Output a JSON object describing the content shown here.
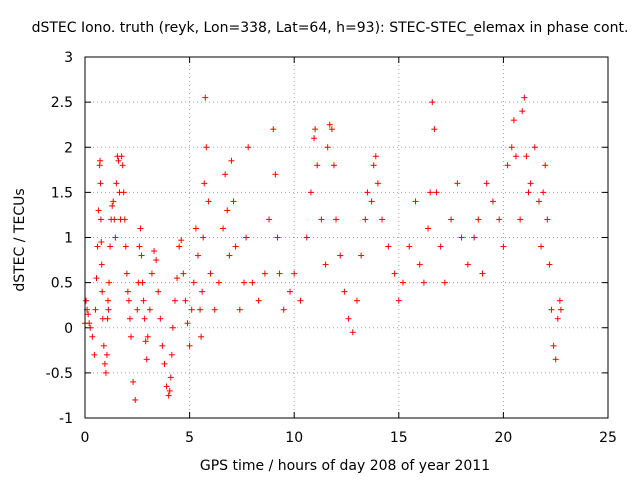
{
  "chart_data": {
    "type": "scatter",
    "title": "dSTEC Iono. truth (reyk, Lon=338, Lat=64, h=93): STEC-STEC_elemax in phase cont.",
    "xlabel": "GPS time / hours of day 208 of year 2011",
    "ylabel": "dSTEC  / TECUs",
    "xlim": [
      0,
      25
    ],
    "ylim": [
      -1,
      3
    ],
    "grid": true,
    "marker": "+",
    "color": "#ff0000",
    "xticks": [
      "0",
      "5",
      "10",
      "15",
      "20",
      "25"
    ],
    "yticks": [
      "-1",
      "-0.5",
      "0",
      "0.5",
      "1",
      "1.5",
      "2",
      "2.5",
      "3"
    ],
    "series": [
      {
        "x": [
          0.0,
          0.05,
          0.1,
          0.15,
          0.2,
          0.25,
          0.35,
          0.45,
          0.5,
          0.55,
          0.6,
          0.65,
          0.7,
          0.72,
          0.74,
          0.76,
          0.78,
          0.8,
          0.82,
          0.85,
          0.9,
          0.95,
          1.0,
          1.05,
          1.08,
          1.1,
          1.12,
          1.15,
          1.2,
          1.25,
          1.3,
          1.35,
          1.4,
          1.45,
          1.5,
          1.55,
          1.6,
          1.65,
          1.7,
          1.75,
          1.8,
          1.85,
          1.9,
          1.95,
          2.0,
          2.05,
          2.1,
          2.15,
          2.2,
          2.3,
          2.4,
          2.5,
          2.55,
          2.6,
          2.65,
          2.7,
          2.75,
          2.8,
          2.85,
          2.9,
          2.95,
          3.0,
          3.1,
          3.2,
          3.3,
          3.4,
          3.5,
          3.6,
          3.7,
          3.8,
          3.9,
          4.0,
          4.05,
          4.1,
          4.15,
          4.2,
          4.3,
          4.4,
          4.5,
          4.6,
          4.7,
          4.8,
          4.9,
          5.0,
          5.1,
          5.2,
          5.3,
          5.4,
          5.5,
          5.55,
          5.6,
          5.65,
          5.7,
          5.75,
          5.8,
          5.9,
          6.0,
          6.2,
          6.4,
          6.6,
          6.7,
          6.8,
          6.9,
          7.0,
          7.1,
          7.2,
          7.4,
          7.6,
          7.7,
          7.8,
          8.0,
          8.3,
          8.6,
          8.8,
          9.0,
          9.1,
          9.2,
          9.3,
          9.5,
          9.8,
          10.0,
          10.3,
          10.6,
          10.8,
          10.95,
          11.0,
          11.1,
          11.3,
          11.5,
          11.6,
          11.7,
          11.8,
          11.9,
          12.0,
          12.2,
          12.4,
          12.6,
          12.8,
          13.0,
          13.2,
          13.4,
          13.5,
          13.7,
          13.8,
          13.9,
          14.0,
          14.2,
          14.5,
          14.8,
          15.0,
          15.2,
          15.5,
          15.8,
          16.0,
          16.2,
          16.4,
          16.5,
          16.6,
          16.7,
          16.8,
          17.0,
          17.2,
          17.5,
          17.8,
          18.0,
          18.3,
          18.6,
          18.8,
          19.0,
          19.2,
          19.5,
          19.8,
          20.0,
          20.2,
          20.4,
          20.5,
          20.6,
          20.8,
          20.9,
          21.0,
          21.1,
          21.2,
          21.3,
          21.5,
          21.7,
          21.8,
          21.9,
          22.0,
          22.1,
          22.2,
          22.3,
          22.4,
          22.5,
          22.6,
          22.7,
          22.75
        ],
        "y": [
          0.05,
          0.3,
          0.2,
          0.15,
          0.05,
          0.0,
          -0.1,
          -0.3,
          0.2,
          0.55,
          0.9,
          1.3,
          1.8,
          1.85,
          1.6,
          1.2,
          0.95,
          0.7,
          0.4,
          0.1,
          -0.2,
          -0.4,
          -0.5,
          -0.3,
          0.1,
          0.3,
          0.2,
          0.5,
          0.9,
          1.2,
          1.35,
          1.4,
          1.2,
          1.0,
          1.6,
          1.9,
          1.85,
          1.5,
          1.2,
          1.9,
          1.8,
          1.5,
          1.2,
          0.9,
          0.6,
          0.4,
          0.3,
          0.1,
          -0.1,
          -0.6,
          -0.8,
          0.2,
          0.5,
          0.9,
          1.1,
          0.8,
          0.5,
          0.3,
          0.1,
          -0.15,
          -0.35,
          -0.1,
          0.2,
          0.6,
          0.85,
          0.75,
          0.4,
          0.1,
          -0.2,
          -0.4,
          -0.65,
          -0.75,
          -0.7,
          -0.55,
          -0.3,
          0.0,
          0.3,
          0.55,
          0.9,
          0.97,
          0.6,
          0.3,
          0.05,
          -0.2,
          0.2,
          0.5,
          1.1,
          0.8,
          0.2,
          -0.1,
          0.4,
          1.0,
          1.6,
          2.55,
          2.0,
          1.4,
          0.6,
          0.2,
          0.5,
          1.1,
          1.7,
          1.3,
          0.8,
          1.85,
          1.4,
          0.9,
          0.2,
          0.5,
          1.0,
          2.0,
          0.5,
          0.3,
          0.6,
          1.2,
          2.2,
          1.7,
          1.0,
          0.6,
          0.2,
          0.4,
          0.6,
          0.3,
          1.0,
          1.5,
          2.1,
          2.2,
          1.8,
          1.2,
          0.7,
          2.0,
          2.25,
          2.2,
          1.8,
          1.2,
          0.8,
          0.4,
          0.1,
          -0.05,
          0.3,
          0.8,
          1.2,
          1.5,
          1.4,
          1.8,
          1.9,
          1.6,
          1.2,
          0.9,
          0.6,
          0.3,
          0.5,
          0.9,
          1.4,
          0.7,
          0.5,
          1.1,
          1.5,
          2.5,
          2.2,
          1.5,
          0.9,
          0.5,
          1.2,
          1.6,
          1.0,
          0.7,
          1.0,
          1.2,
          0.6,
          1.6,
          1.4,
          1.2,
          0.9,
          1.8,
          2.0,
          2.3,
          1.9,
          1.2,
          2.4,
          2.55,
          1.9,
          1.5,
          1.6,
          2.0,
          1.4,
          0.9,
          1.5,
          1.8,
          1.2,
          0.7,
          0.2,
          -0.2,
          -0.35,
          0.1,
          0.3,
          0.2
        ]
      }
    ]
  }
}
